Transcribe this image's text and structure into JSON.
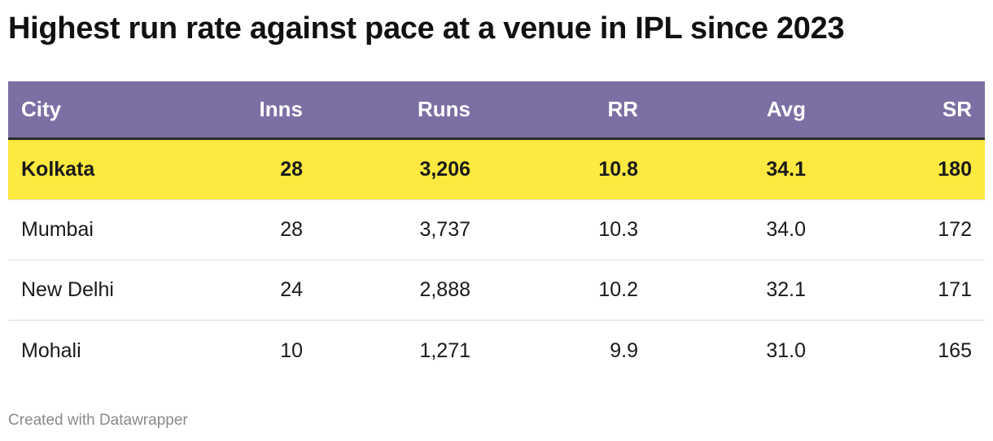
{
  "title": "Highest run rate against pace at a venue in IPL since 2023",
  "footer": "Created with Datawrapper",
  "colors": {
    "header_bg": "#7b6fa3",
    "highlight_bg": "#fde93f"
  },
  "chart_data": {
    "type": "table",
    "title": "Highest run rate against pace at a venue in IPL since 2023",
    "columns": [
      "City",
      "Inns",
      "Runs",
      "RR",
      "Avg",
      "SR"
    ],
    "highlighted_row": 0,
    "rows": [
      [
        "Kolkata",
        "28",
        "3,206",
        "10.8",
        "34.1",
        "180"
      ],
      [
        "Mumbai",
        "28",
        "3,737",
        "10.3",
        "34.0",
        "172"
      ],
      [
        "New Delhi",
        "24",
        "2,888",
        "10.2",
        "32.1",
        "171"
      ],
      [
        "Mohali",
        "10",
        "1,271",
        "9.9",
        "31.0",
        "165"
      ]
    ]
  }
}
